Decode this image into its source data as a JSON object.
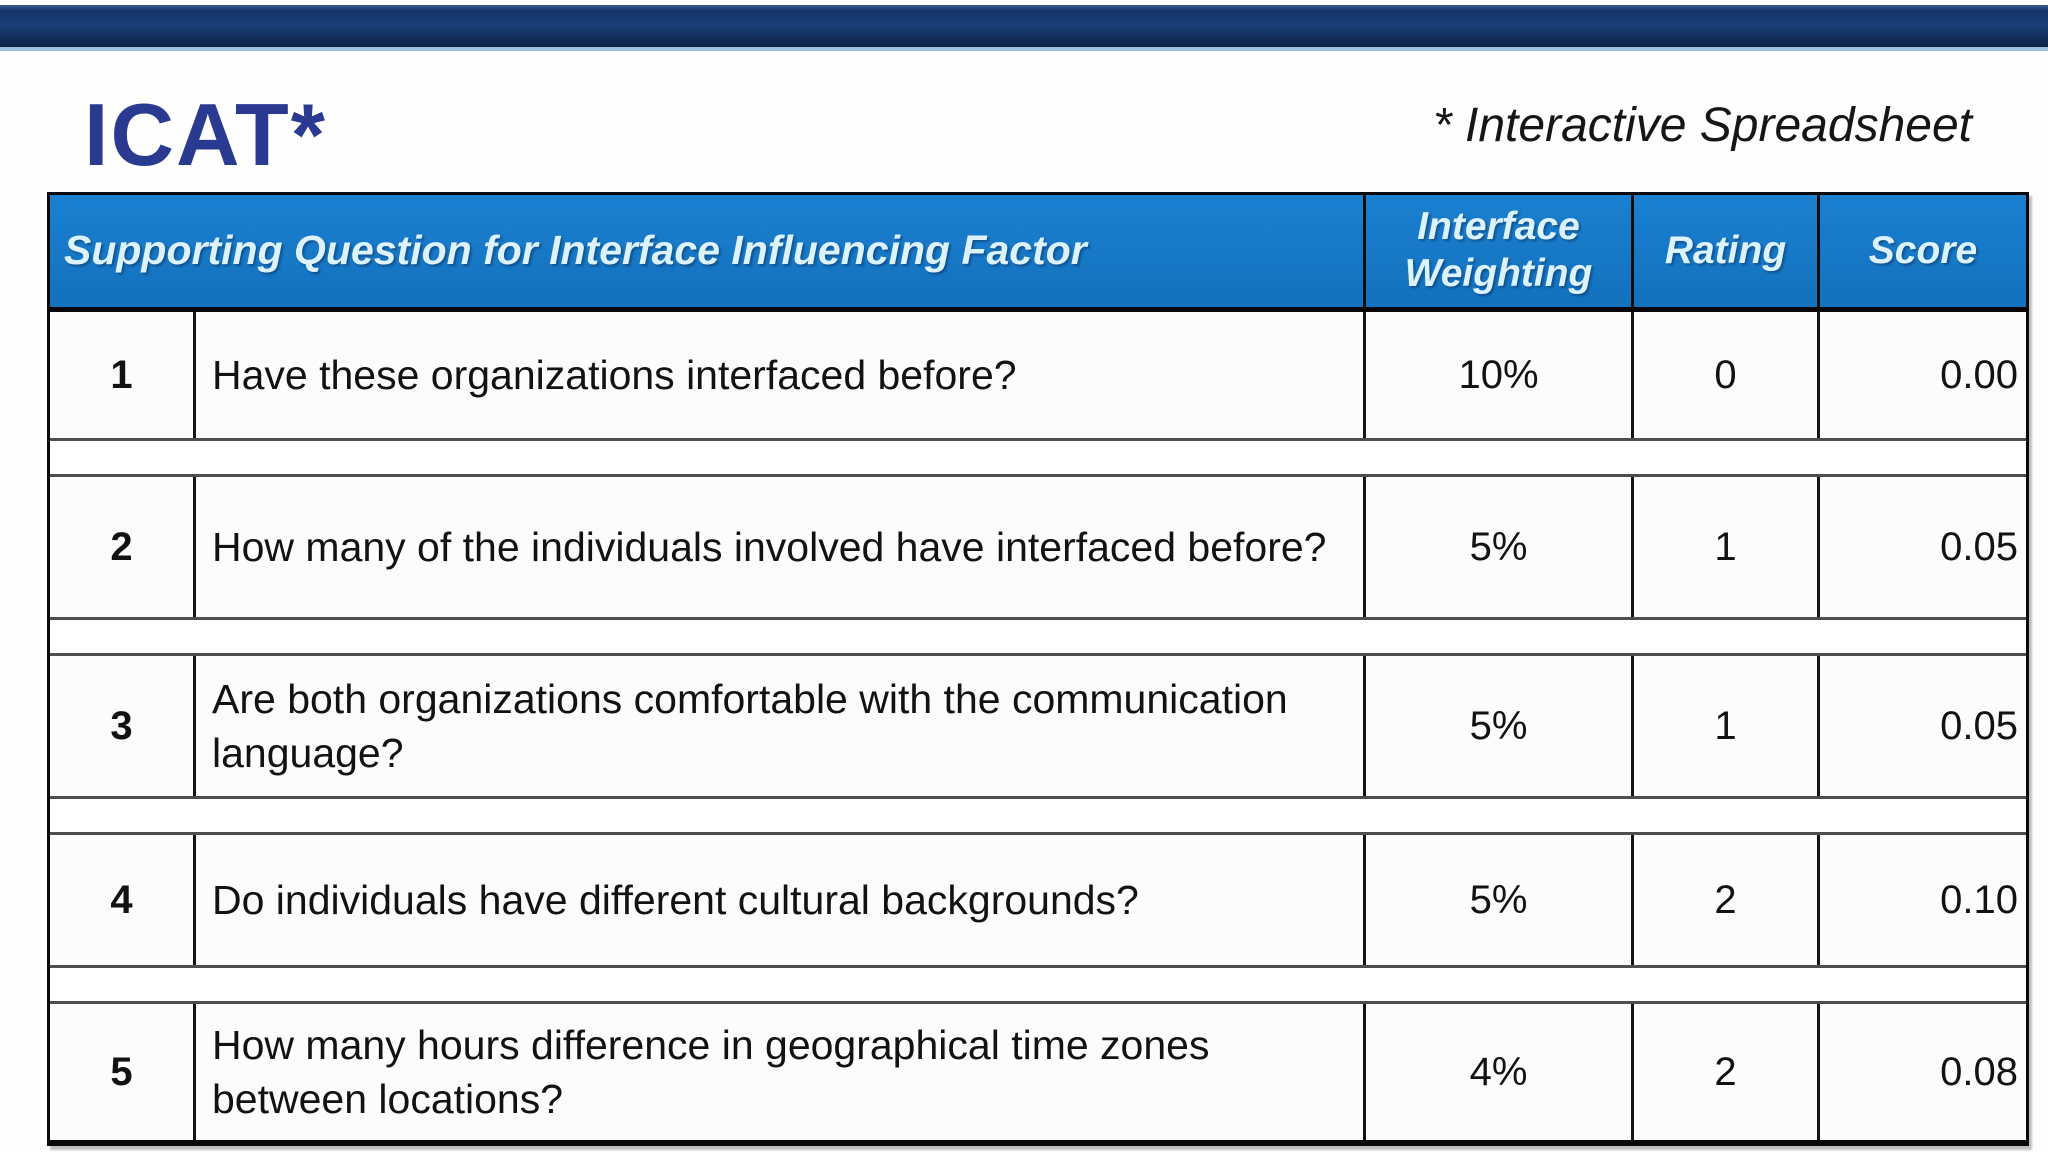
{
  "page": {
    "title": "ICAT*",
    "footnote": "* Interactive Spreadsheet"
  },
  "table": {
    "header": {
      "question": "Supporting Question for Interface Influencing Factor",
      "weighting": "Interface Weighting",
      "rating": "Rating",
      "score": "Score"
    },
    "rows": [
      {
        "num": "1",
        "question": "Have these organizations interfaced before?",
        "weighting": "10%",
        "rating": "0",
        "score": "0.00"
      },
      {
        "num": "2",
        "question": "How many of the individuals involved have interfaced before?",
        "weighting": "5%",
        "rating": "1",
        "score": "0.05"
      },
      {
        "num": "3",
        "question": "Are both organizations comfortable with the communication language?",
        "weighting": "5%",
        "rating": "1",
        "score": "0.05"
      },
      {
        "num": "4",
        "question": "Do individuals have different cultural backgrounds?",
        "weighting": "5%",
        "rating": "2",
        "score": "0.10"
      },
      {
        "num": "5",
        "question": "How many hours difference in geographical time zones between locations?",
        "weighting": "4%",
        "rating": "2",
        "score": "0.08"
      }
    ]
  },
  "colors": {
    "top_bar_navy": "#16336b",
    "top_bar_edge_light_blue": "#9dc3de",
    "title_navy": "#2a3a90",
    "header_blue": "#1577c2",
    "header_text": "#dcf2fc",
    "spacer_line_gray": "#4e4e4e"
  }
}
